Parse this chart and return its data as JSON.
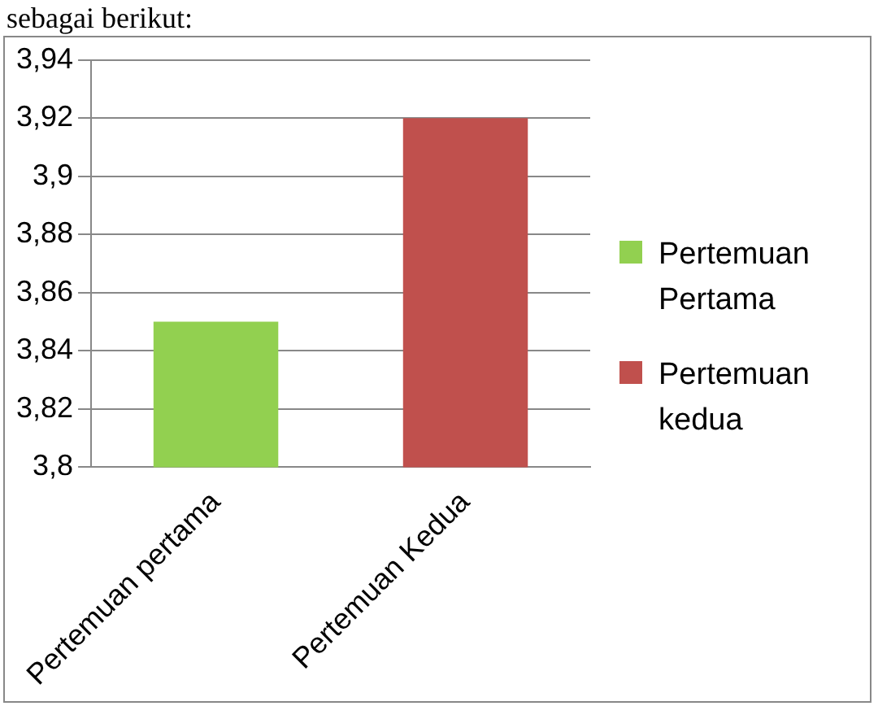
{
  "chart_data": {
    "type": "bar",
    "categories": [
      "Pertemuan pertama",
      "Pertemuan Kedua"
    ],
    "series": [
      {
        "name": "Pertemuan Pertama",
        "color": "#92d050",
        "values": [
          3.85,
          null
        ]
      },
      {
        "name": "Pertemuan kedua",
        "color": "#c0504d",
        "values": [
          null,
          3.92
        ]
      }
    ],
    "ylim": [
      3.8,
      3.94
    ],
    "yticks": [
      {
        "value": 3.8,
        "label": "3,8"
      },
      {
        "value": 3.82,
        "label": "3,82"
      },
      {
        "value": 3.84,
        "label": "3,84"
      },
      {
        "value": 3.86,
        "label": "3,86"
      },
      {
        "value": 3.88,
        "label": "3,88"
      },
      {
        "value": 3.9,
        "label": "3,9"
      },
      {
        "value": 3.92,
        "label": "3,92"
      },
      {
        "value": 3.94,
        "label": "3,94"
      }
    ],
    "grid": "y",
    "legend": "right",
    "annotations": [
      "sebagai berikut:"
    ]
  }
}
